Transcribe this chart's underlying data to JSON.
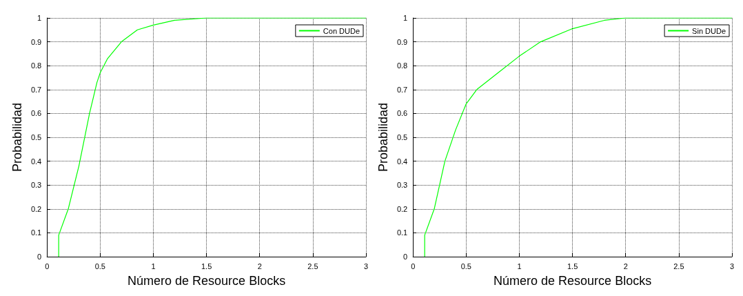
{
  "chart_data": [
    {
      "type": "line",
      "xlabel": "Número de Resource Blocks",
      "ylabel": "Probabilidad",
      "xlim": [
        0,
        3
      ],
      "ylim": [
        0,
        1
      ],
      "xticks": [
        0,
        0.5,
        1,
        1.5,
        2,
        2.5,
        3
      ],
      "yticks": [
        0,
        0.1,
        0.2,
        0.3,
        0.4,
        0.5,
        0.6,
        0.7,
        0.8,
        0.9,
        1
      ],
      "grid": true,
      "legend": "top right",
      "marker": "none",
      "line_style": "solid",
      "series": [
        {
          "name": "Con DUDe",
          "color": "#00ff00",
          "x": [
            0.11,
            0.11,
            0.2,
            0.3,
            0.4,
            0.47,
            0.5,
            0.57,
            0.7,
            0.85,
            1,
            1.2,
            1.5,
            3
          ],
          "values": [
            0,
            0.09,
            0.2,
            0.38,
            0.6,
            0.73,
            0.77,
            0.83,
            0.9,
            0.95,
            0.97,
            0.99,
            1,
            1
          ]
        }
      ]
    },
    {
      "type": "line",
      "xlabel": "Número de Resource Blocks",
      "ylabel": "Probabilidad",
      "xlim": [
        0,
        3
      ],
      "ylim": [
        0,
        1
      ],
      "xticks": [
        0,
        0.5,
        1,
        1.5,
        2,
        2.5,
        3
      ],
      "yticks": [
        0,
        0.1,
        0.2,
        0.3,
        0.4,
        0.5,
        0.6,
        0.7,
        0.8,
        0.9,
        1
      ],
      "grid": true,
      "legend": "top right",
      "marker": "none",
      "line_style": "solid",
      "series": [
        {
          "name": "Sin DUDe",
          "color": "#00ff00",
          "x": [
            0.11,
            0.11,
            0.2,
            0.3,
            0.4,
            0.5,
            0.6,
            0.8,
            1,
            1.2,
            1.5,
            1.8,
            2,
            3
          ],
          "values": [
            0,
            0.09,
            0.2,
            0.4,
            0.53,
            0.64,
            0.7,
            0.77,
            0.84,
            0.9,
            0.955,
            0.99,
            1,
            1
          ]
        }
      ]
    }
  ]
}
